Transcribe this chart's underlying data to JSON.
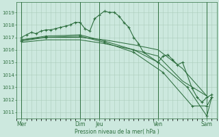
{
  "bg_color": "#cce8de",
  "grid_color": "#aaccbb",
  "line_color": "#2d6e3e",
  "xlabel": "Pression niveau de la mer( hPa )",
  "ylim": [
    1010.5,
    1019.8
  ],
  "yticks": [
    1011,
    1012,
    1013,
    1014,
    1015,
    1016,
    1017,
    1018,
    1019
  ],
  "xlim": [
    0,
    20.5
  ],
  "xtick_labels": [
    "Mer",
    "Dim",
    "Jeu",
    "Ven",
    "Sam"
  ],
  "xtick_positions": [
    0.5,
    6.5,
    8.5,
    14.5,
    19.5
  ],
  "vlines": [
    0.5,
    6.5,
    8.5,
    14.5,
    19.5
  ],
  "series1": {
    "x": [
      0.5,
      1.0,
      1.5,
      2.0,
      2.5,
      3.0,
      3.5,
      4.0,
      4.5,
      5.0,
      5.5,
      6.0,
      6.5,
      7.0,
      7.5,
      8.0,
      8.5,
      9.0,
      9.5,
      10.0,
      10.5,
      11.0,
      11.5,
      12.0,
      12.5,
      13.0,
      14.5,
      15.0,
      15.5,
      16.0,
      16.5,
      17.0,
      18.0,
      18.5,
      19.0,
      19.5,
      20.0
    ],
    "y": [
      1017.0,
      1017.2,
      1017.4,
      1017.3,
      1017.5,
      1017.6,
      1017.6,
      1017.7,
      1017.8,
      1017.9,
      1018.0,
      1018.2,
      1018.2,
      1017.7,
      1017.5,
      1018.5,
      1018.8,
      1019.1,
      1019.0,
      1019.0,
      1018.7,
      1018.2,
      1017.8,
      1017.0,
      1016.5,
      1015.8,
      1015.0,
      1015.5,
      1015.6,
      1015.2,
      1014.8,
      1015.0,
      1012.9,
      1012.2,
      1011.8,
      1012.2,
      1012.4
    ]
  },
  "series2": {
    "x": [
      0.5,
      3.0,
      6.5,
      9.0,
      12.0,
      14.5,
      17.0,
      19.5
    ],
    "y": [
      1016.8,
      1017.0,
      1017.0,
      1016.8,
      1016.4,
      1016.0,
      1014.5,
      1012.3
    ]
  },
  "series3": {
    "x": [
      0.5,
      3.0,
      6.5,
      9.0,
      12.0,
      14.5,
      17.0,
      19.5
    ],
    "y": [
      1016.6,
      1016.8,
      1016.8,
      1016.5,
      1016.0,
      1015.5,
      1013.5,
      1012.3
    ]
  },
  "series4": {
    "x": [
      0.5,
      3.0,
      6.5,
      9.0,
      12.0,
      14.5,
      17.5,
      19.5,
      20.0
    ],
    "y": [
      1016.8,
      1017.1,
      1017.2,
      1016.7,
      1016.0,
      1015.0,
      1013.0,
      1010.7,
      1012.2
    ]
  },
  "series5": {
    "x": [
      0.5,
      3.0,
      6.5,
      9.0,
      12.0,
      15.0,
      18.0,
      19.5,
      20.0
    ],
    "y": [
      1016.7,
      1017.0,
      1017.1,
      1016.6,
      1015.8,
      1014.2,
      1011.5,
      1011.5,
      1012.2
    ]
  }
}
